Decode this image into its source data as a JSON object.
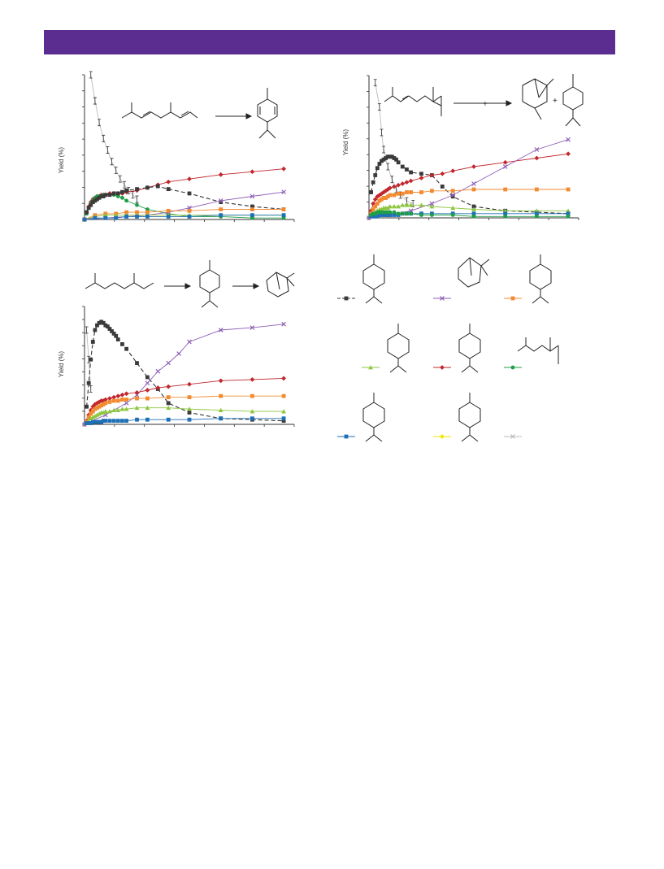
{
  "header": {
    "color": "#5b2d91"
  },
  "legend": {
    "entries": [
      {
        "icon": "alpha-terpinyl-cation-structure",
        "color": "#3a3a3a",
        "marker": "square",
        "dashed": true
      },
      {
        "icon": "camphene-like-bicyclic-structure",
        "color": "#8e5fb5",
        "marker": "x"
      },
      {
        "icon": "terpinolene-structure",
        "color": "#f28a30",
        "marker": "square"
      },
      {
        "icon": "limonene-structure",
        "color": "#8dc63f",
        "marker": "triangle"
      },
      {
        "icon": "alpha-terpinene-structure",
        "color": "#c1272d",
        "marker": "diamond"
      },
      {
        "icon": "linalool-like-structure",
        "color": "#1f9e45",
        "marker": "circle"
      },
      {
        "icon": "gamma-terpinene-structure",
        "color": "#1f6fb5",
        "marker": "square"
      },
      {
        "icon": "isoterpinolene-structure",
        "color": "#f2e600",
        "marker": "diamond"
      },
      {
        "icon": "blank-entry",
        "color": "#bdbdbd",
        "marker": "x"
      }
    ]
  },
  "chart_data": [
    {
      "type": "line",
      "ylabel": "Yield (%)",
      "xlim": [
        0,
        100
      ],
      "ylim": [
        0,
        100
      ],
      "grid": false,
      "series": [
        {
          "color": "#9a9a9a",
          "marker": "errorbar",
          "x": [
            3,
            5,
            7,
            9,
            11,
            13,
            15,
            17,
            19,
            21,
            23,
            25
          ],
          "y": [
            100,
            82,
            67,
            56,
            48,
            40,
            34,
            28,
            24,
            20,
            17,
            14
          ]
        },
        {
          "color": "#c1272d",
          "marker": "diamond",
          "x": [
            1,
            2,
            3,
            4,
            5,
            6,
            7,
            8,
            9,
            10,
            12,
            14,
            16,
            18,
            20,
            25,
            30,
            35,
            40,
            50,
            65,
            80,
            95
          ],
          "y": [
            5,
            9,
            12,
            14,
            15,
            16,
            16,
            17,
            17,
            17,
            18,
            18,
            18,
            18,
            19,
            20,
            22,
            24,
            26,
            28,
            31,
            33,
            35
          ]
        },
        {
          "color": "#1f9e45",
          "marker": "circle",
          "x": [
            1,
            2,
            3,
            4,
            5,
            6,
            7,
            8,
            9,
            10,
            12,
            14,
            16,
            18,
            20,
            25,
            30,
            40,
            50,
            65,
            80,
            95
          ],
          "y": [
            4,
            8,
            11,
            13,
            15,
            16,
            16,
            16,
            17,
            17,
            17,
            17,
            16,
            15,
            13,
            10,
            7,
            4,
            2,
            2,
            1,
            1
          ]
        },
        {
          "color": "#3a3a3a",
          "marker": "square",
          "dashed": true,
          "x": [
            1,
            2,
            3,
            4,
            5,
            6,
            7,
            8,
            9,
            10,
            12,
            14,
            16,
            18,
            20,
            25,
            30,
            35,
            40,
            50,
            65,
            80,
            95
          ],
          "y": [
            5,
            8,
            10,
            12,
            13,
            14,
            15,
            16,
            16,
            17,
            17,
            18,
            18,
            19,
            20,
            21,
            22,
            23,
            21,
            18,
            12,
            9,
            7
          ]
        },
        {
          "color": "#8e5fb5",
          "marker": "x",
          "x": [
            0,
            10,
            20,
            30,
            40,
            50,
            65,
            80,
            95
          ],
          "y": [
            0,
            1,
            2,
            3,
            5,
            8,
            13,
            16,
            19
          ]
        },
        {
          "color": "#f28a30",
          "marker": "square",
          "x": [
            0,
            5,
            10,
            15,
            20,
            25,
            30,
            40,
            50,
            65,
            80,
            95
          ],
          "y": [
            0,
            3,
            4,
            4,
            5,
            5,
            5,
            6,
            6,
            7,
            7,
            7
          ]
        },
        {
          "color": "#8dc63f",
          "marker": "triangle",
          "x": [
            0,
            5,
            10,
            15,
            20,
            25,
            30,
            40,
            50,
            65,
            80,
            95
          ],
          "y": [
            0,
            2,
            3,
            3,
            3,
            3,
            3,
            3,
            3,
            3,
            3,
            3
          ]
        },
        {
          "color": "#1f6fb5",
          "marker": "square",
          "x": [
            0,
            5,
            10,
            15,
            20,
            25,
            30,
            40,
            50,
            65,
            80,
            95
          ],
          "y": [
            0,
            1,
            1,
            1,
            2,
            2,
            2,
            2,
            2,
            3,
            3,
            3
          ]
        }
      ]
    },
    {
      "type": "line",
      "ylabel": "Yield (%)",
      "xlim": [
        0,
        100
      ],
      "ylim": [
        0,
        100
      ],
      "grid": false,
      "series": [
        {
          "color": "#9a9a9a",
          "marker": "errorbar",
          "x": [
            3,
            5,
            6,
            7,
            9,
            11,
            13,
            15,
            18,
            21
          ],
          "y": [
            95,
            78,
            60,
            48,
            36,
            27,
            20,
            16,
            12,
            10
          ]
        },
        {
          "color": "#3a3a3a",
          "marker": "square",
          "dashed": true,
          "x": [
            1,
            2,
            3,
            4,
            5,
            6,
            7,
            8,
            9,
            10,
            11,
            12,
            13,
            14,
            16,
            18,
            20,
            25,
            30,
            35,
            40,
            50,
            65,
            80,
            95
          ],
          "y": [
            18,
            25,
            30,
            35,
            38,
            40,
            41,
            42,
            43,
            43,
            43,
            42,
            41,
            39,
            36,
            34,
            32,
            31,
            30,
            22,
            15,
            8,
            5,
            4,
            3
          ]
        },
        {
          "color": "#c1272d",
          "marker": "diamond",
          "x": [
            1,
            2,
            3,
            4,
            5,
            6,
            7,
            8,
            9,
            10,
            12,
            14,
            16,
            18,
            20,
            25,
            30,
            35,
            40,
            50,
            65,
            80,
            95
          ],
          "y": [
            5,
            10,
            13,
            15,
            16,
            17,
            18,
            19,
            20,
            21,
            22,
            23,
            24,
            25,
            26,
            28,
            30,
            31,
            33,
            36,
            39,
            42,
            45
          ]
        },
        {
          "color": "#8e5fb5",
          "marker": "x",
          "x": [
            0,
            10,
            20,
            30,
            40,
            50,
            65,
            80,
            95
          ],
          "y": [
            0,
            2,
            5,
            10,
            16,
            24,
            36,
            48,
            55
          ]
        },
        {
          "color": "#f28a30",
          "marker": "square",
          "x": [
            1,
            2,
            3,
            4,
            5,
            6,
            7,
            8,
            9,
            10,
            12,
            14,
            16,
            18,
            20,
            25,
            30,
            40,
            50,
            65,
            80,
            95
          ],
          "y": [
            3,
            6,
            8,
            10,
            12,
            13,
            14,
            14,
            15,
            16,
            16,
            17,
            17,
            18,
            18,
            18,
            19,
            19,
            20,
            20,
            20,
            20
          ]
        },
        {
          "color": "#8dc63f",
          "marker": "triangle",
          "x": [
            1,
            2,
            3,
            4,
            5,
            6,
            7,
            8,
            9,
            10,
            12,
            14,
            16,
            18,
            20,
            25,
            30,
            40,
            50,
            65,
            80,
            95
          ],
          "y": [
            2,
            3,
            4,
            5,
            6,
            6,
            7,
            7,
            7,
            8,
            8,
            8,
            9,
            9,
            9,
            9,
            8,
            7,
            6,
            5,
            5,
            5
          ]
        },
        {
          "color": "#1f6fb5",
          "marker": "square",
          "x": [
            1,
            2,
            3,
            4,
            5,
            6,
            7,
            8,
            9,
            10,
            12,
            14,
            16,
            18,
            20,
            25,
            30,
            40,
            50,
            65,
            80,
            95
          ],
          "y": [
            1,
            1,
            1,
            1,
            2,
            2,
            2,
            2,
            2,
            2,
            2,
            2,
            3,
            3,
            3,
            3,
            3,
            3,
            3,
            3,
            3,
            3
          ]
        },
        {
          "color": "#1f9e45",
          "marker": "circle",
          "x": [
            1,
            2,
            3,
            4,
            5,
            6,
            7,
            8,
            9,
            10,
            12,
            14,
            16,
            18,
            20,
            25,
            30,
            40,
            50,
            65,
            80,
            95
          ],
          "y": [
            2,
            3,
            3,
            4,
            4,
            4,
            4,
            4,
            4,
            4,
            4,
            3,
            3,
            3,
            3,
            2,
            2,
            2,
            1,
            1,
            1,
            1
          ]
        }
      ]
    },
    {
      "type": "line",
      "ylabel": "Yield (%)",
      "xlim": [
        0,
        100
      ],
      "ylim": [
        0,
        100
      ],
      "grid": false,
      "series": [
        {
          "color": "#9a9a9a",
          "marker": "errorbar",
          "x": [
            1,
            2,
            3
          ],
          "y": [
            80,
            55,
            30
          ]
        },
        {
          "color": "#3a3a3a",
          "marker": "square",
          "dashed": true,
          "x": [
            1,
            2,
            3,
            4,
            5,
            6,
            7,
            8,
            9,
            10,
            11,
            12,
            13,
            14,
            15,
            16,
            18,
            20,
            25,
            30,
            35,
            40,
            50,
            65,
            80,
            95
          ],
          "y": [
            15,
            35,
            55,
            70,
            80,
            84,
            86,
            87,
            86,
            84,
            83,
            81,
            79,
            77,
            75,
            72,
            68,
            64,
            52,
            40,
            30,
            18,
            10,
            5,
            4,
            3
          ]
        },
        {
          "color": "#8e5fb5",
          "marker": "x",
          "x": [
            0,
            10,
            20,
            25,
            30,
            35,
            40,
            45,
            50,
            65,
            80,
            95
          ],
          "y": [
            0,
            8,
            18,
            25,
            35,
            45,
            52,
            60,
            70,
            80,
            82,
            85
          ]
        },
        {
          "color": "#c1272d",
          "marker": "diamond",
          "x": [
            1,
            2,
            3,
            4,
            5,
            6,
            7,
            8,
            9,
            10,
            12,
            14,
            16,
            18,
            20,
            25,
            30,
            35,
            40,
            50,
            65,
            80,
            95
          ],
          "y": [
            3,
            8,
            12,
            15,
            17,
            18,
            19,
            20,
            20,
            21,
            22,
            23,
            24,
            25,
            26,
            27,
            29,
            31,
            32,
            34,
            37,
            38,
            39
          ]
        },
        {
          "color": "#f28a30",
          "marker": "square",
          "x": [
            1,
            2,
            3,
            4,
            5,
            6,
            7,
            8,
            9,
            10,
            12,
            14,
            16,
            18,
            20,
            25,
            30,
            40,
            50,
            65,
            80,
            95
          ],
          "y": [
            2,
            6,
            9,
            11,
            13,
            14,
            15,
            16,
            17,
            18,
            19,
            20,
            20,
            21,
            21,
            22,
            22,
            23,
            23,
            24,
            24,
            24
          ]
        },
        {
          "color": "#8dc63f",
          "marker": "triangle",
          "x": [
            1,
            2,
            3,
            4,
            5,
            6,
            7,
            8,
            9,
            10,
            12,
            14,
            16,
            18,
            20,
            25,
            30,
            40,
            50,
            65,
            80,
            95
          ],
          "y": [
            1,
            3,
            5,
            6,
            7,
            8,
            9,
            10,
            10,
            11,
            11,
            12,
            12,
            13,
            13,
            14,
            14,
            14,
            13,
            12,
            11,
            11
          ]
        },
        {
          "color": "#1f6fb5",
          "marker": "square",
          "x": [
            1,
            2,
            3,
            4,
            5,
            6,
            7,
            8,
            9,
            10,
            12,
            14,
            16,
            18,
            20,
            25,
            30,
            40,
            50,
            65,
            80,
            95
          ],
          "y": [
            1,
            1,
            1,
            2,
            2,
            2,
            2,
            2,
            3,
            3,
            3,
            3,
            3,
            3,
            3,
            4,
            4,
            4,
            4,
            5,
            5,
            5
          ]
        }
      ]
    }
  ]
}
